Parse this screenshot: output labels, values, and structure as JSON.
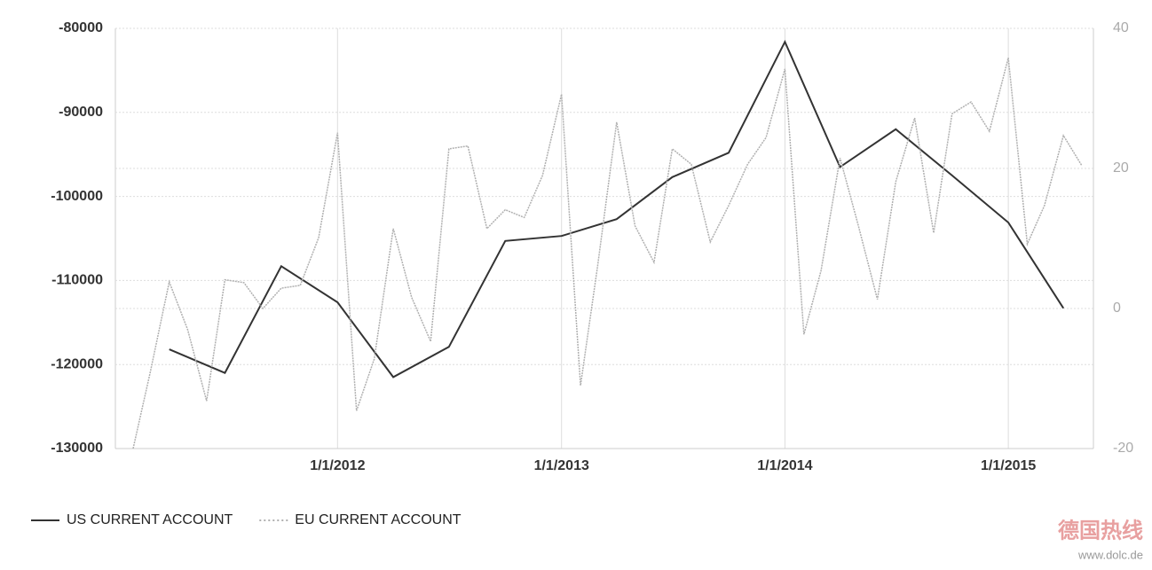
{
  "chart_data": {
    "type": "line",
    "xlim": [
      "2011-01-03",
      "2015-05-20"
    ],
    "xticks": [
      {
        "value": "2012-01-01",
        "label": "1/1/2012"
      },
      {
        "value": "2013-01-01",
        "label": "1/1/2013"
      },
      {
        "value": "2014-01-01",
        "label": "1/1/2014"
      },
      {
        "value": "2015-01-01",
        "label": "1/1/2015"
      }
    ],
    "ylim": [
      -130000,
      -80000
    ],
    "yticks": [
      -130000,
      -120000,
      -110000,
      -100000,
      -90000,
      -80000
    ],
    "y2lim": [
      -20,
      40
    ],
    "y2ticks": [
      -20,
      0,
      20,
      40
    ],
    "grid": true,
    "legend": "bottom-left",
    "series": [
      {
        "name": "US CURRENT ACCOUNT",
        "color": "#333333",
        "dashed": false,
        "x": [
          "2011-04-01",
          "2011-07-01",
          "2011-10-01",
          "2012-01-01",
          "2012-04-01",
          "2012-07-01",
          "2012-10-01",
          "2013-01-01",
          "2013-04-01",
          "2013-07-01",
          "2013-10-01",
          "2014-01-01",
          "2014-04-01",
          "2014-07-01",
          "2014-10-01",
          "2015-01-01",
          "2015-04-01"
        ],
        "values": [
          -118200,
          -121000,
          -108300,
          -112600,
          -121500,
          -117900,
          -105300,
          -104700,
          -102700,
          -97700,
          -94800,
          -81600,
          -96500,
          -92000,
          -97500,
          -103100,
          -113300
        ]
      },
      {
        "name": "EU CURRENT ACCOUNT",
        "color": "#b0b0b0",
        "dashed": true,
        "axis": "y2",
        "x": [
          "2011-02-01",
          "2011-03-01",
          "2011-04-01",
          "2011-05-01",
          "2011-06-01",
          "2011-07-01",
          "2011-08-01",
          "2011-09-01",
          "2011-10-01",
          "2011-11-01",
          "2011-12-01",
          "2012-01-01",
          "2012-02-01",
          "2012-03-01",
          "2012-04-01",
          "2012-05-01",
          "2012-06-01",
          "2012-07-01",
          "2012-08-01",
          "2012-09-01",
          "2012-10-01",
          "2012-11-01",
          "2012-12-01",
          "2013-01-01",
          "2013-02-01",
          "2013-03-01",
          "2013-04-01",
          "2013-05-01",
          "2013-06-01",
          "2013-07-01",
          "2013-08-01",
          "2013-09-01",
          "2013-10-01",
          "2013-11-01",
          "2013-12-01",
          "2014-01-01",
          "2014-02-01",
          "2014-03-01",
          "2014-04-01",
          "2014-05-01",
          "2014-06-01",
          "2014-07-01",
          "2014-08-01",
          "2014-09-01",
          "2014-10-01",
          "2014-11-01",
          "2014-12-01",
          "2015-01-01",
          "2015-02-01",
          "2015-03-01",
          "2015-04-01",
          "2015-05-01"
        ],
        "values": [
          -20,
          -9.1,
          3.8,
          -3.0,
          -13.2,
          4.1,
          3.7,
          0,
          2.9,
          3.3,
          10.1,
          25.1,
          -14.6,
          -7.2,
          11.4,
          1.6,
          -4.7,
          22.8,
          23.2,
          11.4,
          14.1,
          13.0,
          19.0,
          30.6,
          -11.0,
          6.1,
          26.6,
          11.8,
          6.6,
          22.8,
          20.6,
          9.5,
          14.7,
          20.6,
          24.4,
          34.2,
          -3.7,
          5.4,
          21.5,
          11.8,
          1.3,
          18.1,
          27.2,
          10.8,
          27.8,
          29.5,
          25.3,
          35.8,
          9.2,
          14.7,
          24.7,
          20.4
        ]
      }
    ]
  },
  "watermark": {
    "title": "德国热线",
    "url": "www.dolc.de"
  }
}
